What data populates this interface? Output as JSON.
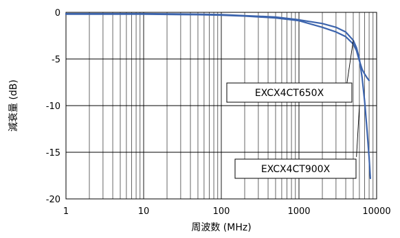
{
  "chart_data": {
    "type": "line",
    "title": "",
    "xlabel": "周波数 (MHz)",
    "ylabel": "減衰量 (dB)",
    "xscale": "log",
    "xlim": [
      1,
      10000
    ],
    "ylim": [
      -20,
      0
    ],
    "grid": true,
    "x_ticks": [
      1,
      10,
      100,
      1000,
      10000
    ],
    "x_tick_labels": [
      "1",
      "10",
      "100",
      "1000",
      "10000"
    ],
    "y_ticks": [
      0,
      -5,
      -10,
      -15,
      -20
    ],
    "y_tick_labels": [
      "0",
      "-5",
      "-10",
      "-15",
      "-20"
    ],
    "line_color": "#3c64ad",
    "series": [
      {
        "name": "EXCX4CT650X",
        "x": [
          1,
          10,
          50,
          100,
          200,
          500,
          1000,
          2000,
          3000,
          4000,
          5000,
          5500,
          6000,
          6500,
          7000,
          7500,
          8000
        ],
        "y": [
          -0.2,
          -0.2,
          -0.25,
          -0.3,
          -0.4,
          -0.6,
          -0.9,
          -1.6,
          -2.1,
          -2.6,
          -3.4,
          -4.1,
          -5.2,
          -6.1,
          -6.6,
          -7.0,
          -7.3
        ]
      },
      {
        "name": "EXCX4CT900X",
        "x": [
          1,
          10,
          50,
          100,
          200,
          500,
          1000,
          2000,
          3000,
          4000,
          5000,
          5500,
          6000,
          6500,
          7000,
          7500,
          8000,
          8300
        ],
        "y": [
          -0.15,
          -0.15,
          -0.2,
          -0.25,
          -0.35,
          -0.5,
          -0.8,
          -1.2,
          -1.6,
          -2.1,
          -3.0,
          -3.8,
          -5.0,
          -7.0,
          -9.5,
          -12.5,
          -15.5,
          -17.8
        ]
      }
    ],
    "annotations": [
      {
        "text": "EXCX4CT650X",
        "x": [
          4000,
          5000
        ],
        "y": [
          -8.5,
          -3.0
        ]
      },
      {
        "text": "EXCX4CT900X",
        "x": [
          5500,
          6000
        ],
        "y": [
          -15.5,
          -10.0
        ]
      }
    ]
  }
}
